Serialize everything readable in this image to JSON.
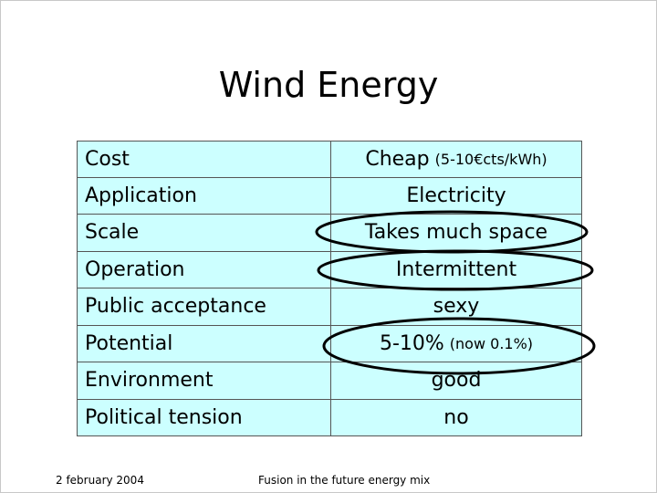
{
  "title": "Wind Energy",
  "table": {
    "rows": [
      {
        "label": "Cost",
        "value": "Cheap",
        "note": "(5-10€cts/kWh)"
      },
      {
        "label": "Application",
        "value": "Electricity"
      },
      {
        "label": "Scale",
        "value": "Takes much space"
      },
      {
        "label": "Operation",
        "value": "Intermittent"
      },
      {
        "label": "Public acceptance",
        "value": "sexy"
      },
      {
        "label": "Potential",
        "value": "5-10%",
        "note": "(now 0.1%)"
      },
      {
        "label": "Environment",
        "value": "good"
      },
      {
        "label": "Political tension",
        "value": "no"
      }
    ]
  },
  "footer": {
    "date": "2 february 2004",
    "subject": "Fusion in the future energy mix"
  }
}
